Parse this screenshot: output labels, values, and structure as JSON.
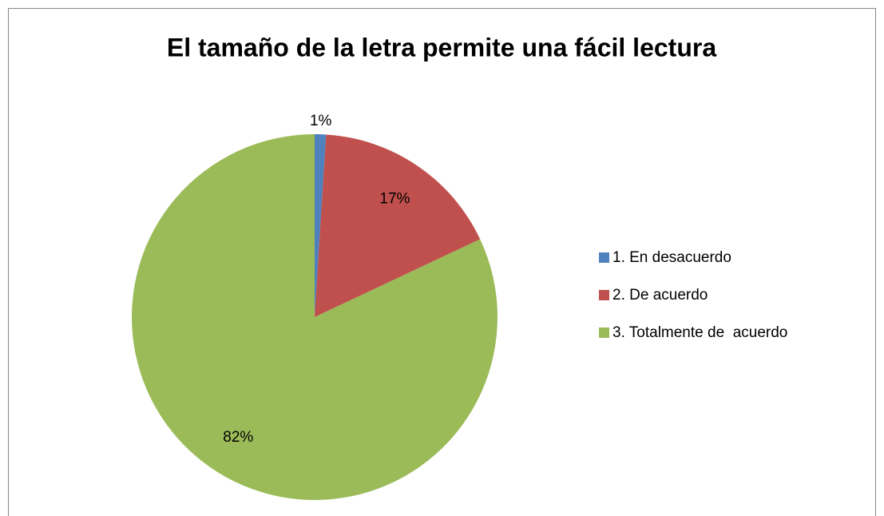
{
  "chart_data": {
    "type": "pie",
    "title": "El tamaño de la letra permite una fácil lectura",
    "categories": [
      "1. En desacuerdo",
      "2. De acuerdo",
      "3. Totalmente de  acuerdo"
    ],
    "values": [
      1,
      17,
      82
    ],
    "value_labels": [
      "1%",
      "17%",
      "82%"
    ],
    "colors": [
      "#4f81bd",
      "#c0504d",
      "#9bbb59"
    ],
    "legend": "right"
  }
}
